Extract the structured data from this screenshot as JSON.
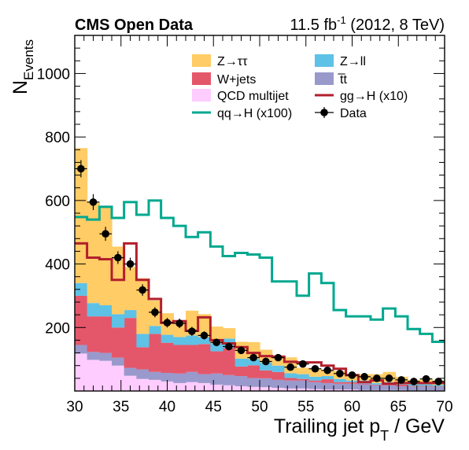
{
  "header": {
    "experiment": "CMS Open Data",
    "lumi_prefix": "11.5 fb",
    "lumi_exp": "-1",
    "lumi_suffix": " (2012, 8 TeV)"
  },
  "chart_data": {
    "type": "bar",
    "stacked": true,
    "xlabel_main": "Trailing jet p",
    "xlabel_sub": "T",
    "xlabel_unit": " / GeV",
    "ylabel_main": "N",
    "ylabel_sub": "Events",
    "xlim": [
      30,
      70
    ],
    "ylim": [
      0,
      1120
    ],
    "xticks": [
      30,
      35,
      40,
      45,
      50,
      55,
      60,
      65,
      70
    ],
    "yticks": [
      200,
      400,
      600,
      800,
      1000
    ],
    "bin_edges": [
      30,
      31.33,
      32.67,
      34,
      35.33,
      36.67,
      38,
      39.33,
      40.67,
      42,
      43.33,
      44.67,
      46,
      47.33,
      48.67,
      50,
      51.33,
      52.67,
      54,
      55.33,
      56.67,
      58,
      59.33,
      60.67,
      62,
      63.33,
      64.67,
      66,
      67.33,
      68.67,
      70
    ],
    "stack": [
      {
        "name": "QCD multijet",
        "color": "#ffccff",
        "values": [
          118,
          98,
          95,
          80,
          48,
          38,
          35,
          30,
          25,
          28,
          25,
          20,
          18,
          15,
          13,
          12,
          10,
          8,
          8,
          6,
          5,
          5,
          5,
          3,
          3,
          3,
          3,
          2,
          2,
          2
        ]
      },
      {
        "name": "t̅t",
        "color": "#9999cc",
        "values": [
          27,
          25,
          25,
          25,
          25,
          30,
          25,
          27,
          30,
          32,
          28,
          35,
          32,
          32,
          28,
          28,
          25,
          25,
          25,
          22,
          20,
          18,
          18,
          18,
          15,
          15,
          12,
          12,
          12,
          10
        ]
      },
      {
        "name": "W+jets",
        "color": "#e4576a",
        "values": [
          155,
          112,
          115,
          95,
          157,
          70,
          120,
          95,
          90,
          85,
          95,
          70,
          85,
          30,
          40,
          25,
          25,
          8,
          5,
          5,
          12,
          5,
          5,
          2,
          2,
          5,
          5,
          2,
          2,
          2
        ]
      },
      {
        "name": "Z→ll",
        "color": "#5ec1e6",
        "values": [
          40,
          42,
          35,
          42,
          25,
          42,
          25,
          25,
          25,
          30,
          22,
          25,
          30,
          25,
          20,
          25,
          20,
          15,
          15,
          12,
          10,
          10,
          5,
          10,
          5,
          5,
          5,
          5,
          5,
          5
        ]
      },
      {
        "name": "Z→ττ",
        "color": "#ffcc66",
        "values": [
          425,
          318,
          310,
          213,
          135,
          175,
          80,
          68,
          53,
          78,
          72,
          53,
          33,
          53,
          53,
          40,
          30,
          50,
          20,
          25,
          18,
          25,
          15,
          20,
          28,
          32,
          20,
          14,
          15,
          14
        ]
      }
    ],
    "signals": [
      {
        "name": "gg→H (x10)",
        "color": "#b21f2c",
        "values": [
          465,
          420,
          415,
          350,
          465,
          350,
          290,
          215,
          220,
          190,
          232,
          160,
          150,
          138,
          120,
          110,
          108,
          92,
          90,
          90,
          80,
          70,
          50,
          28,
          33,
          23,
          25,
          25,
          25,
          25
        ]
      },
      {
        "name": "qq→H (x100)",
        "color": "#00a88f",
        "values": [
          548,
          540,
          580,
          545,
          595,
          555,
          600,
          545,
          520,
          485,
          500,
          455,
          425,
          435,
          430,
          420,
          345,
          345,
          300,
          370,
          340,
          255,
          235,
          235,
          225,
          260,
          235,
          195,
          180,
          155
        ]
      }
    ],
    "data": {
      "name": "Data",
      "x": [
        30.67,
        32,
        33.33,
        34.67,
        36,
        37.33,
        38.67,
        40,
        41.33,
        42.67,
        44,
        45.33,
        46.67,
        48,
        49.33,
        50.67,
        52,
        53.33,
        54.67,
        56,
        57.33,
        58.67,
        60,
        61.33,
        62.67,
        64,
        65.33,
        66.67,
        68,
        69.33
      ],
      "y": [
        700,
        595,
        495,
        420,
        400,
        318,
        248,
        215,
        213,
        188,
        175,
        153,
        140,
        128,
        105,
        93,
        105,
        75,
        85,
        70,
        65,
        55,
        50,
        45,
        40,
        40,
        35,
        30,
        38,
        30
      ],
      "err": [
        27,
        25,
        22,
        20,
        20,
        18,
        16,
        15,
        15,
        14,
        13,
        12,
        12,
        11,
        10,
        10,
        10,
        9,
        9,
        8,
        8,
        7,
        7,
        7,
        6,
        6,
        6,
        5,
        6,
        5
      ]
    },
    "legend": {
      "placement": "top-center",
      "entries": [
        "Z→ττ",
        "Z→ll",
        "W+jets",
        "t̅t",
        "QCD multijet",
        "gg→H (x10)",
        "qq→H (x100)",
        "Data"
      ]
    },
    "grid": false
  }
}
